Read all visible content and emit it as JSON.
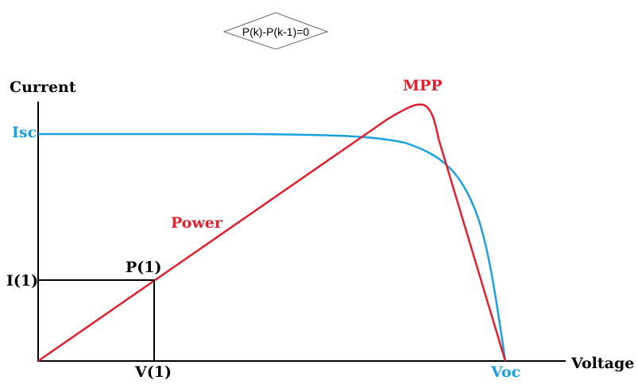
{
  "condition": {
    "text": "P(k)-P(k-1)=0"
  },
  "axes": {
    "ylabel": "Current",
    "xlabel": "Voltage"
  },
  "labels": {
    "isc": "Isc",
    "voc": "Voc",
    "mpp": "MPP",
    "power": "Power",
    "point": "P(1)",
    "i1": "I(1)",
    "v1": "V(1)"
  },
  "colors": {
    "current_curve": "#1aa0e0",
    "power_curve": "#e0202c",
    "axes": "#000000"
  },
  "icons": {
    "condition_shape": "diamond-icon"
  }
}
